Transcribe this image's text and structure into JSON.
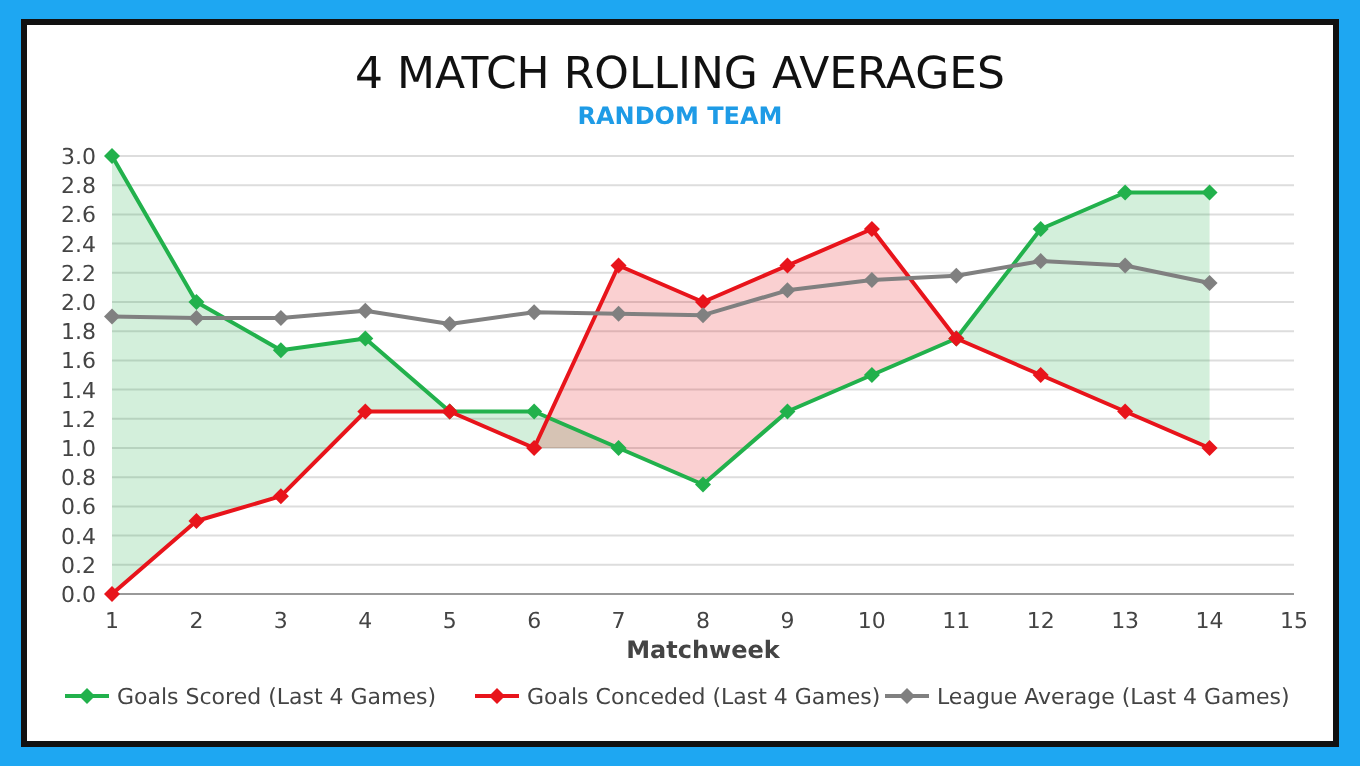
{
  "chart_data": {
    "type": "line",
    "title": "4 MATCH ROLLING AVERAGES",
    "subtitle": "RANDOM TEAM",
    "xlabel": "Matchweek",
    "x": [
      1,
      2,
      3,
      4,
      5,
      6,
      7,
      8,
      9,
      10,
      11,
      12,
      13,
      14
    ],
    "xlim": [
      1,
      15
    ],
    "xticks": [
      1,
      2,
      3,
      4,
      5,
      6,
      7,
      8,
      9,
      10,
      11,
      12,
      13,
      14,
      15
    ],
    "ylim": [
      0,
      3
    ],
    "yticks": [
      {
        "value": 0,
        "label": "0.0"
      },
      {
        "value": 0.2,
        "label": "0.2"
      },
      {
        "value": 0.4,
        "label": "0.4"
      },
      {
        "value": 0.6,
        "label": "0.6"
      },
      {
        "value": 0.8,
        "label": "0.8"
      },
      {
        "value": 1,
        "label": "1.0"
      },
      {
        "value": 1.2,
        "label": "1.2"
      },
      {
        "value": 1.4,
        "label": "1.4"
      },
      {
        "value": 1.6,
        "label": "1.6"
      },
      {
        "value": 1.8,
        "label": "1.8"
      },
      {
        "value": 2,
        "label": "2.0"
      },
      {
        "value": 2.2,
        "label": "2.2"
      },
      {
        "value": 2.4,
        "label": "2.4"
      },
      {
        "value": 2.6,
        "label": "2.6"
      },
      {
        "value": 2.8,
        "label": "2.8"
      },
      {
        "value": 3,
        "label": "3.0"
      }
    ],
    "grid": "y",
    "legend": "bottom",
    "marker": "diamond",
    "line_style": "solid",
    "series": [
      {
        "name": "Goals Scored (Last 4 Games)",
        "color": "#22b14c",
        "values": [
          3.0,
          2.0,
          1.67,
          1.75,
          1.25,
          1.25,
          1.0,
          0.75,
          1.25,
          1.5,
          1.75,
          2.5,
          2.75,
          2.75
        ],
        "upper": [
          3.0,
          2.0,
          1.67,
          1.75,
          1.25,
          1.25,
          1.0,
          0.75,
          1.25,
          1.5,
          1.75,
          2.5,
          2.75,
          2.75
        ],
        "lower": [
          0,
          0.5,
          0.67,
          1.25,
          1.25,
          1.0,
          1.0,
          0.75,
          1.25,
          1.5,
          1.75,
          1.5,
          1.25,
          1.0
        ]
      },
      {
        "name": "Goals Conceded (Last 4 Games)",
        "color": "#e8141b",
        "values": [
          0,
          0.5,
          0.67,
          1.25,
          1.25,
          1.0,
          2.25,
          2.0,
          2.25,
          2.5,
          1.75,
          1.5,
          1.25,
          1.0
        ],
        "upper": [
          0,
          0.5,
          0.67,
          1.25,
          1.25,
          1.0,
          2.25,
          2.0,
          2.25,
          2.5,
          1.75,
          1.5,
          1.25,
          1.0
        ],
        "lower": [
          0,
          0.5,
          0.67,
          1.25,
          1.25,
          1.0,
          1.0,
          0.75,
          1.25,
          1.5,
          1.75,
          1.5,
          1.25,
          1.0
        ]
      },
      {
        "name": "League Average (Last 4 Games)",
        "color": "#808080",
        "values": [
          1.9,
          1.89,
          1.89,
          1.94,
          1.85,
          1.93,
          1.92,
          1.91,
          2.08,
          2.15,
          2.18,
          2.28,
          2.25,
          2.13
        ]
      }
    ]
  }
}
